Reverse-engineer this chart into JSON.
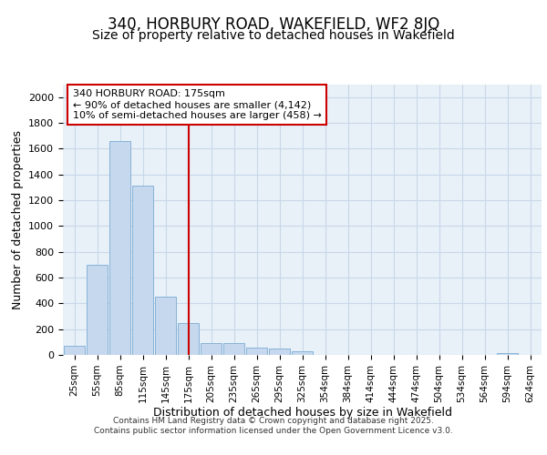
{
  "title1": "340, HORBURY ROAD, WAKEFIELD, WF2 8JQ",
  "title2": "Size of property relative to detached houses in Wakefield",
  "xlabel": "Distribution of detached houses by size in Wakefield",
  "ylabel": "Number of detached properties",
  "categories": [
    "25sqm",
    "55sqm",
    "85sqm",
    "115sqm",
    "145sqm",
    "175sqm",
    "205sqm",
    "235sqm",
    "265sqm",
    "295sqm",
    "325sqm",
    "354sqm",
    "384sqm",
    "414sqm",
    "444sqm",
    "474sqm",
    "504sqm",
    "534sqm",
    "564sqm",
    "594sqm",
    "624sqm"
  ],
  "values": [
    70,
    700,
    1660,
    1310,
    450,
    250,
    95,
    90,
    55,
    50,
    30,
    0,
    0,
    0,
    0,
    0,
    0,
    0,
    0,
    15,
    0
  ],
  "bar_color": "#c5d8ee",
  "bar_edge_color": "#7aacd4",
  "red_line_index": 5,
  "annotation_text": "340 HORBURY ROAD: 175sqm\n← 90% of detached houses are smaller (4,142)\n10% of semi-detached houses are larger (458) →",
  "annotation_box_color": "#ffffff",
  "annotation_box_edge": "#cc0000",
  "ylim": [
    0,
    2100
  ],
  "yticks": [
    0,
    200,
    400,
    600,
    800,
    1000,
    1200,
    1400,
    1600,
    1800,
    2000
  ],
  "grid_color": "#c8d8e8",
  "bg_color": "#e8f0f8",
  "footer1": "Contains HM Land Registry data © Crown copyright and database right 2025.",
  "footer2": "Contains public sector information licensed under the Open Government Licence v3.0.",
  "title1_fontsize": 12,
  "title2_fontsize": 10,
  "xlabel_fontsize": 9,
  "ylabel_fontsize": 9
}
